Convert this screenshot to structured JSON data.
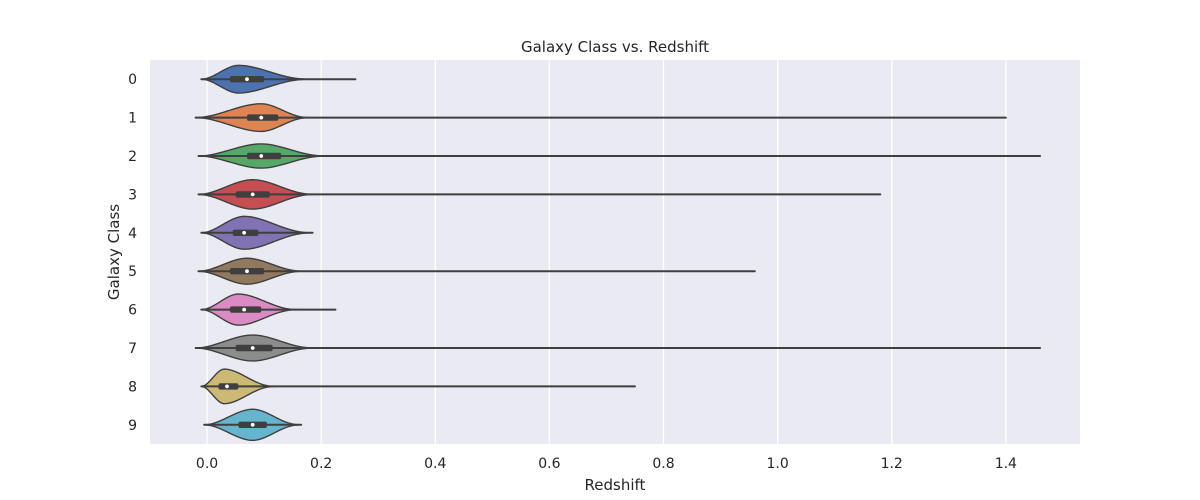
{
  "chart_data": {
    "type": "violin",
    "orientation": "horizontal",
    "title": "Galaxy Class vs. Redshift",
    "xlabel": "Redshift",
    "ylabel": "Galaxy Class",
    "xlim": [
      -0.1,
      1.53
    ],
    "xticks": [
      "0.0",
      "0.2",
      "0.4",
      "0.6",
      "0.8",
      "1.0",
      "1.2",
      "1.4"
    ],
    "grid": true,
    "legend": "none",
    "categories": [
      "0",
      "1",
      "2",
      "3",
      "4",
      "5",
      "6",
      "7",
      "8",
      "9"
    ],
    "series": [
      {
        "category": "0",
        "color": "#4c72b0",
        "min": -0.01,
        "max": 0.26,
        "q1": 0.04,
        "median": 0.07,
        "q3": 0.1,
        "mode": 0.055,
        "body_end": 0.18,
        "halfwidth": 0.8
      },
      {
        "category": "1",
        "color": "#dd8452",
        "min": -0.02,
        "max": 1.4,
        "q1": 0.07,
        "median": 0.095,
        "q3": 0.125,
        "mode": 0.095,
        "body_end": 0.18,
        "halfwidth": 0.8
      },
      {
        "category": "2",
        "color": "#55a868",
        "min": -0.015,
        "max": 1.46,
        "q1": 0.07,
        "median": 0.095,
        "q3": 0.13,
        "mode": 0.095,
        "body_end": 0.21,
        "halfwidth": 0.7
      },
      {
        "category": "3",
        "color": "#c44e52",
        "min": -0.015,
        "max": 1.18,
        "q1": 0.05,
        "median": 0.08,
        "q3": 0.11,
        "mode": 0.08,
        "body_end": 0.19,
        "halfwidth": 0.85
      },
      {
        "category": "4",
        "color": "#8172b3",
        "min": -0.01,
        "max": 0.185,
        "q1": 0.045,
        "median": 0.065,
        "q3": 0.09,
        "mode": 0.065,
        "body_end": 0.185,
        "halfwidth": 0.95
      },
      {
        "category": "5",
        "color": "#937860",
        "min": -0.015,
        "max": 0.96,
        "q1": 0.04,
        "median": 0.07,
        "q3": 0.1,
        "mode": 0.07,
        "body_end": 0.17,
        "halfwidth": 0.75
      },
      {
        "category": "6",
        "color": "#da8bc3",
        "min": -0.01,
        "max": 0.225,
        "q1": 0.04,
        "median": 0.065,
        "q3": 0.095,
        "mode": 0.055,
        "body_end": 0.16,
        "halfwidth": 0.9
      },
      {
        "category": "7",
        "color": "#8c8c8c",
        "min": -0.02,
        "max": 1.46,
        "q1": 0.05,
        "median": 0.08,
        "q3": 0.115,
        "mode": 0.08,
        "body_end": 0.19,
        "halfwidth": 0.75
      },
      {
        "category": "8",
        "color": "#ccb974",
        "min": -0.01,
        "max": 0.75,
        "q1": 0.02,
        "median": 0.035,
        "q3": 0.055,
        "mode": 0.03,
        "body_end": 0.12,
        "halfwidth": 1.0
      },
      {
        "category": "9",
        "color": "#64b5cd",
        "min": -0.005,
        "max": 0.165,
        "q1": 0.055,
        "median": 0.08,
        "q3": 0.105,
        "mode": 0.08,
        "body_end": 0.165,
        "halfwidth": 0.9
      }
    ]
  }
}
